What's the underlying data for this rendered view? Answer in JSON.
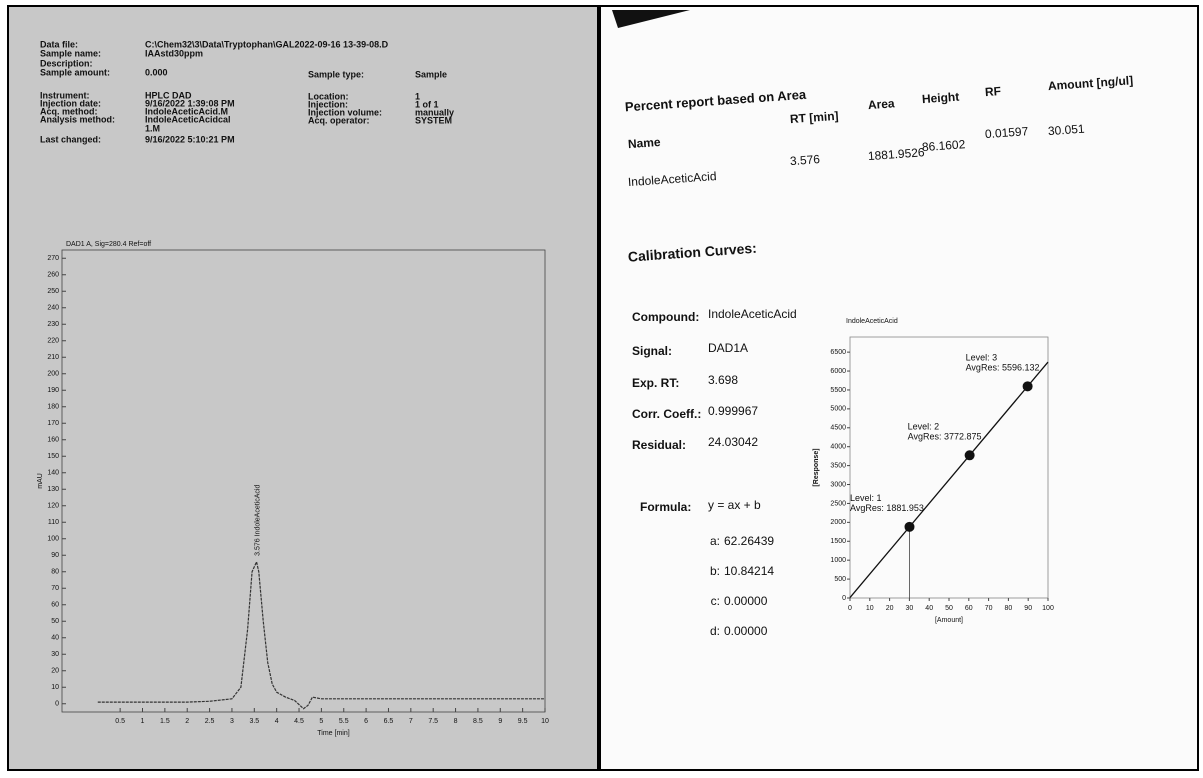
{
  "left_page": {
    "fields": [
      {
        "label": "Data file:",
        "value": "C:\\Chem32\\3\\Data\\Tryptophan\\GAL2022-09-16 13-39-08.D"
      },
      {
        "label": "Sample name:",
        "value": "IAAstd30ppm"
      },
      {
        "label": "Description:"
      },
      {
        "label": "Sample amount:",
        "value": "0.000"
      },
      {
        "label": "Instrument:",
        "value": "HPLC DAD"
      },
      {
        "label": "Injection date:",
        "value": "9/16/2022 1:39:08 PM"
      },
      {
        "label": "Acq. method:",
        "value": "IndoleAceticAcid.M"
      },
      {
        "label": "Analysis method:",
        "value": [
          "IndoleAceticAcidcal",
          "1.M"
        ]
      },
      {
        "label": "Last changed:",
        "value": "9/16/2022 5:10:21 PM"
      }
    ],
    "fields_right": [
      {
        "label": "Sample type:",
        "value": "Sample"
      },
      {
        "label": "Location:",
        "value": "1"
      },
      {
        "label": "Injection:",
        "value": "1 of 1"
      },
      {
        "label": "Injection volume:",
        "value": "manually"
      },
      {
        "label": "Acq. operator:",
        "value": "SYSTEM"
      }
    ],
    "chromatogram": {
      "type": "line",
      "title": "DAD1 A, Sig=280.4 Ref=off",
      "xlabel": "Time [min]",
      "ylabel": "mAU",
      "peak_label": "3.576 IndoleAceticAcid",
      "peak_x": 3.576,
      "color": "#333333",
      "x": [
        0,
        0.5,
        1,
        1.5,
        2,
        2.5,
        3,
        3.2,
        3.35,
        3.45,
        3.55,
        3.6,
        3.7,
        3.8,
        3.9,
        4.0,
        4.2,
        4.4,
        4.6,
        4.7,
        4.8,
        5,
        5.5,
        6,
        7,
        8,
        9,
        10
      ],
      "values": [
        1,
        1,
        1,
        1,
        1,
        1.5,
        3,
        10,
        45,
        80,
        86,
        80,
        50,
        25,
        12,
        7,
        4,
        2,
        -3,
        -1,
        4,
        3,
        3,
        3,
        3,
        3,
        3,
        3
      ],
      "xlim": [
        -0.8,
        10
      ],
      "xticks": [
        0.5,
        1,
        1.5,
        2,
        2.5,
        3,
        3.5,
        4,
        4.5,
        5,
        5.5,
        6,
        6.5,
        7,
        7.5,
        8,
        8.5,
        9,
        9.5,
        10
      ],
      "ylim": [
        -5,
        275
      ],
      "yticks": [
        0,
        10,
        20,
        30,
        40,
        50,
        60,
        70,
        80,
        90,
        100,
        110,
        120,
        130,
        140,
        150,
        160,
        170,
        180,
        190,
        200,
        210,
        220,
        230,
        240,
        250,
        260,
        270
      ]
    }
  },
  "right_page": {
    "report_title": "Percent report based on Area",
    "table": {
      "header": [
        "Name",
        "RT [min]",
        "Area",
        "Height",
        "RF",
        "Amount [ng/ul]"
      ],
      "rows": [
        [
          "IndoleAceticAcid",
          3.576,
          1881.9526,
          86.1602,
          0.01597,
          30.051
        ]
      ]
    },
    "calibration_title": "Calibration Curves:",
    "fields": [
      {
        "label": "Compound:",
        "value": "IndoleAceticAcid"
      },
      {
        "label": "Signal:",
        "value": "DAD1A"
      },
      {
        "label": "Exp. RT:",
        "value": "3.698"
      },
      {
        "label": "Corr. Coeff.:",
        "value": "0.999967"
      },
      {
        "label": "Residual:",
        "value": "24.03042"
      }
    ],
    "formula_label": "Formula:",
    "formula": "y = ax + b",
    "coefficients": [
      {
        "label": "a:",
        "value": 62.26439
      },
      {
        "label": "b:",
        "value": 10.84214
      },
      {
        "label": "c:",
        "value": "0.00000"
      },
      {
        "label": "d:",
        "value": "0.00000"
      }
    ],
    "calibration": {
      "type": "scatter",
      "title": "IndoleAceticAcid",
      "xlabel": "[Amount]",
      "ylabel": "[Response]",
      "x": [
        30.05,
        60.42,
        89.7
      ],
      "values": [
        1881.953,
        3772.875,
        5596.132
      ],
      "level_labels": [
        "Level: 1",
        "Level: 2",
        "Level: 3"
      ],
      "value_labels": [
        "AvgRes: 1881.953",
        "AvgRes: 3772.875",
        "AvgRes: 5596.132"
      ],
      "xlim": [
        0,
        100
      ],
      "xticks": [
        0,
        10,
        20,
        30,
        40,
        50,
        60,
        70,
        80,
        90,
        100
      ],
      "ylim": [
        0,
        6900
      ],
      "yticks": [
        0,
        500,
        1000,
        1500,
        2000,
        2500,
        3000,
        3500,
        4000,
        4500,
        5000,
        5500,
        6000,
        6500
      ],
      "color": "#111111"
    }
  }
}
